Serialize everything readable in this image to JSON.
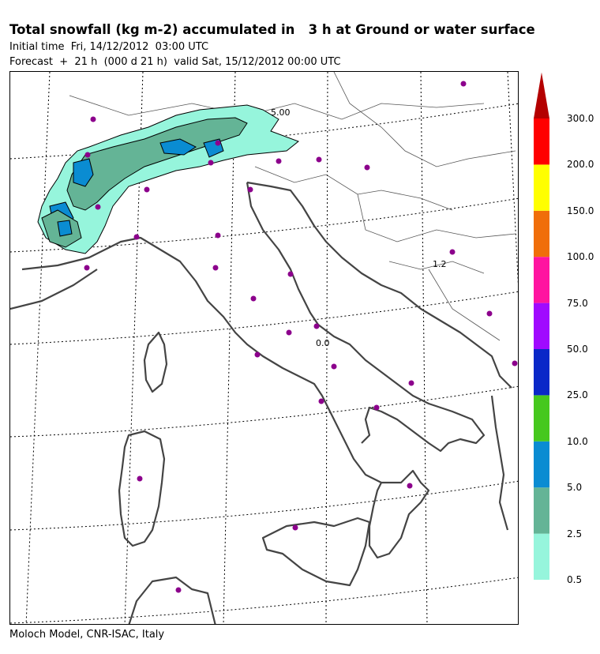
{
  "header": {
    "title": "Total snowfall (kg m-2) accumulated in   3 h at Ground or water surface",
    "initial_time": "Initial time  Fri, 14/12/2012  03:00 UTC",
    "forecast": "Forecast  +  21 h  (000 d 21 h)  valid Sat, 15/12/2012 00:00 UTC"
  },
  "footer": {
    "credit": "Moloch Model, CNR-ISAC, Italy"
  },
  "map": {
    "contour_labels": [
      "5.00",
      "1.2",
      "0.0"
    ]
  },
  "legend": {
    "levels": [
      {
        "label": "0.5",
        "color": "#96f5dc"
      },
      {
        "label": "2.5",
        "color": "#64b496"
      },
      {
        "label": "5.0",
        "color": "#0a8cd2"
      },
      {
        "label": "10.0",
        "color": "#46c81e"
      },
      {
        "label": "25.0",
        "color": "#0a28c8"
      },
      {
        "label": "50.0",
        "color": "#a00aff"
      },
      {
        "label": "75.0",
        "color": "#ff14a0"
      },
      {
        "label": "100.0",
        "color": "#f06e0a"
      },
      {
        "label": "150.0",
        "color": "#ffff00"
      },
      {
        "label": "200.0",
        "color": "#ff0000"
      },
      {
        "label": "300.0",
        "color": "#b40000"
      }
    ]
  }
}
